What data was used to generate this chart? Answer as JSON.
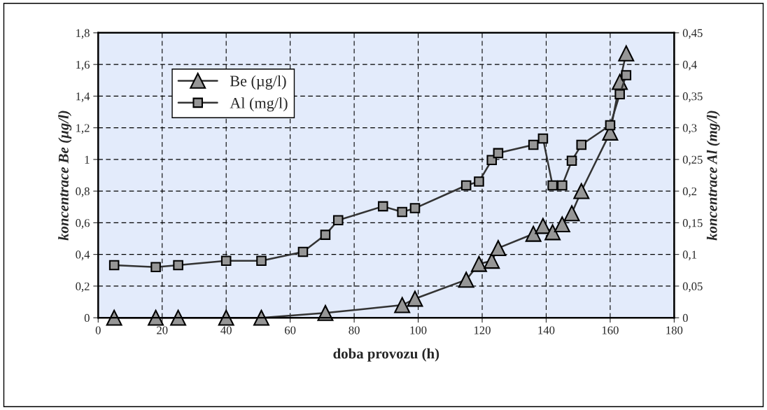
{
  "chart_data": {
    "type": "line",
    "xlabel": "doba provozu (h)",
    "ylabel": "koncentrace Be (µg/l)",
    "y2label": "koncentrace Al (mg/l)",
    "series": [
      {
        "name": "Be (µg/l)",
        "color": "#969696",
        "marker": "triangle",
        "x": [
          5,
          18,
          25,
          40,
          51,
          71,
          95,
          99,
          115,
          119,
          123,
          125,
          136,
          139,
          142,
          145,
          148,
          151,
          160,
          163,
          165
        ],
        "values": [
          0,
          0,
          0,
          0,
          0,
          0.03,
          0.08,
          0.12,
          0.24,
          0.34,
          0.36,
          0.44,
          0.53,
          0.58,
          0.54,
          0.59,
          0.66,
          0.8,
          1.17,
          1.49,
          1.67
        ]
      },
      {
        "name": "Al (mg/l)",
        "color": "#969696",
        "marker": "square",
        "axis": "y2",
        "x": [
          5,
          18,
          25,
          40,
          51,
          64,
          71,
          75,
          89,
          95,
          99,
          115,
          119,
          123,
          125,
          136,
          139,
          142,
          145,
          148,
          151,
          160,
          163,
          165
        ],
        "values": [
          0.083,
          0.08,
          0.083,
          0.09,
          0.09,
          0.104,
          0.131,
          0.154,
          0.176,
          0.167,
          0.173,
          0.209,
          0.215,
          0.249,
          0.26,
          0.273,
          0.283,
          0.209,
          0.209,
          0.248,
          0.273,
          0.304,
          0.353,
          0.383
        ]
      }
    ],
    "xlim": [
      0,
      180
    ],
    "xticks": [
      0,
      20,
      40,
      60,
      80,
      100,
      120,
      140,
      160,
      180
    ],
    "ylim": [
      0,
      1.8
    ],
    "yticks": [
      0,
      {
        "value": 0.2,
        "label": "0,2"
      },
      {
        "value": 0.4,
        "label": "0,4"
      },
      {
        "value": 0.6,
        "label": "0,6"
      },
      {
        "value": 0.8,
        "label": "0,8"
      },
      1,
      {
        "value": 1.2,
        "label": "1,2"
      },
      {
        "value": 1.4,
        "label": "1,4"
      },
      {
        "value": 1.6,
        "label": "1,6"
      },
      {
        "value": 1.8,
        "label": "1,8"
      }
    ],
    "y2lim": [
      0,
      0.45
    ],
    "y2ticks": [
      0,
      {
        "value": 0.05,
        "label": "0,05"
      },
      {
        "value": 0.1,
        "label": "0,1"
      },
      {
        "value": 0.15,
        "label": "0,15"
      },
      {
        "value": 0.2,
        "label": "0,2"
      },
      {
        "value": 0.25,
        "label": "0,25"
      },
      {
        "value": 0.3,
        "label": "0,3"
      },
      {
        "value": 0.35,
        "label": "0,35"
      },
      {
        "value": 0.4,
        "label": "0,4"
      },
      {
        "value": 0.45,
        "label": "0,45"
      }
    ],
    "grid": true,
    "legend": "top left",
    "line_style": "solid"
  }
}
